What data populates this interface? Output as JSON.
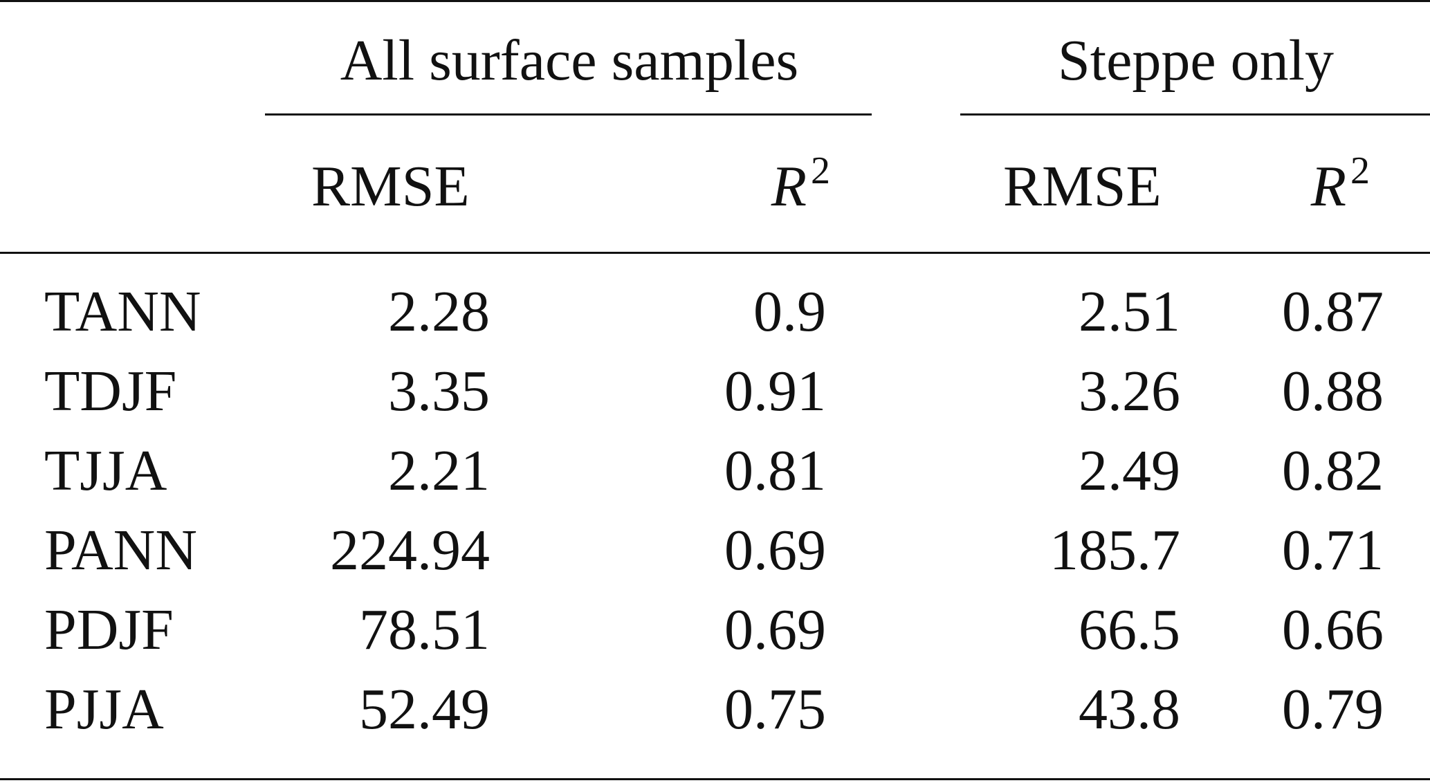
{
  "table": {
    "group_headers": [
      "All surface samples",
      "Steppe only"
    ],
    "sub_headers": [
      {
        "main": "RMSE",
        "sup": ""
      },
      {
        "main": "R",
        "sup": "2"
      },
      {
        "main": "RMSE",
        "sup": ""
      },
      {
        "main": "R",
        "sup": "2"
      }
    ],
    "rows": [
      {
        "label": "TANN",
        "values": [
          "2.28",
          "0.9",
          "2.51",
          "0.87"
        ]
      },
      {
        "label": "TDJF",
        "values": [
          "3.35",
          "0.91",
          "3.26",
          "0.88"
        ]
      },
      {
        "label": "TJJA",
        "values": [
          "2.21",
          "0.81",
          "2.49",
          "0.82"
        ]
      },
      {
        "label": "PANN",
        "values": [
          "224.94",
          "0.69",
          "185.7",
          "0.71"
        ]
      },
      {
        "label": "PDJF",
        "values": [
          "78.51",
          "0.69",
          "66.5",
          "0.66"
        ]
      },
      {
        "label": "PJJA",
        "values": [
          "52.49",
          "0.75",
          "43.8",
          "0.79"
        ]
      }
    ]
  }
}
